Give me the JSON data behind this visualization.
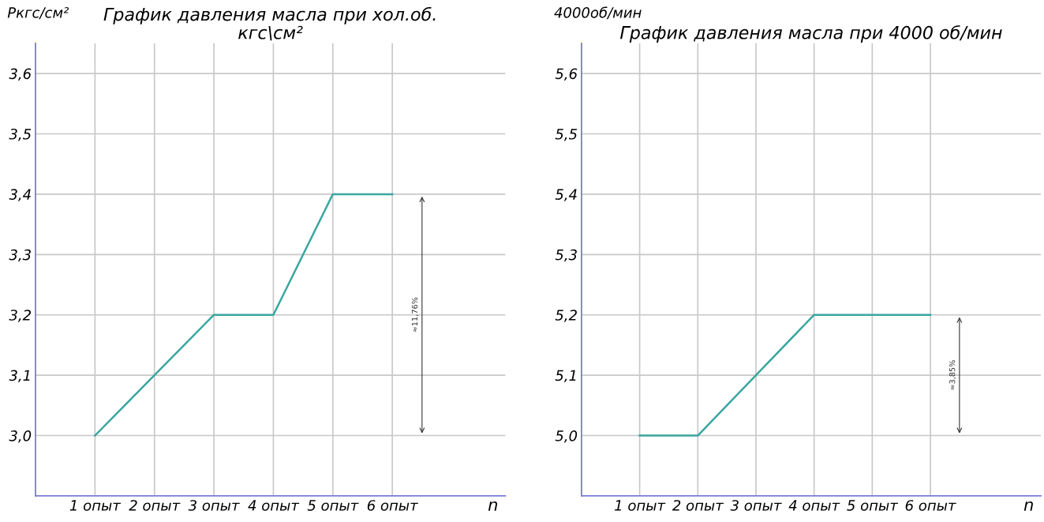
{
  "chart_data": [
    {
      "type": "line",
      "title": "График давления масла при хол.об.\nкгс\\см²",
      "ylabel": "Pкгс/см²",
      "xlabel": "n",
      "categories": [
        "1 опыт",
        "2 опыт",
        "3 опыт",
        "4 опыт",
        "5 опыт",
        "6 опыт"
      ],
      "series": [
        {
          "color": "#3aa6a0",
          "values": [
            3.0,
            3.1,
            3.2,
            3.2,
            3.4,
            3.4
          ]
        }
      ],
      "ylim": [
        2.9,
        3.65
      ],
      "yticks": [
        {
          "value": 3.0,
          "label": "3,0"
        },
        {
          "value": 3.1,
          "label": "3,1"
        },
        {
          "value": 3.2,
          "label": "3,2"
        },
        {
          "value": 3.3,
          "label": "3,3"
        },
        {
          "value": 3.4,
          "label": "3,4"
        },
        {
          "value": 3.5,
          "label": "3,5"
        },
        {
          "value": 3.6,
          "label": "3,6"
        }
      ],
      "grid": true,
      "marker": "none",
      "line_style": "solid",
      "annotations": [
        "≈11,76%"
      ]
    },
    {
      "type": "line",
      "title": "График давления масла при 4000 об/мин",
      "ylabel": "4000об/мин",
      "xlabel": "n",
      "categories": [
        "1 опыт",
        "2 опыт",
        "3 опыт",
        "4 опыт",
        "5 опыт",
        "6 опыт"
      ],
      "series": [
        {
          "color": "#3aa6a0",
          "values": [
            5.0,
            5.0,
            5.1,
            5.2,
            5.2,
            5.2
          ]
        }
      ],
      "ylim": [
        4.9,
        5.65
      ],
      "yticks": [
        {
          "value": 5.0,
          "label": "5,0"
        },
        {
          "value": 5.1,
          "label": "5,1"
        },
        {
          "value": 5.2,
          "label": "5,2"
        },
        {
          "value": 5.3,
          "label": "5,3"
        },
        {
          "value": 5.4,
          "label": "5,4"
        },
        {
          "value": 5.5,
          "label": "5,5"
        },
        {
          "value": 5.6,
          "label": "5,6"
        }
      ],
      "grid": true,
      "marker": "none",
      "line_style": "solid",
      "annotations": [
        "≈3,85%"
      ]
    }
  ]
}
